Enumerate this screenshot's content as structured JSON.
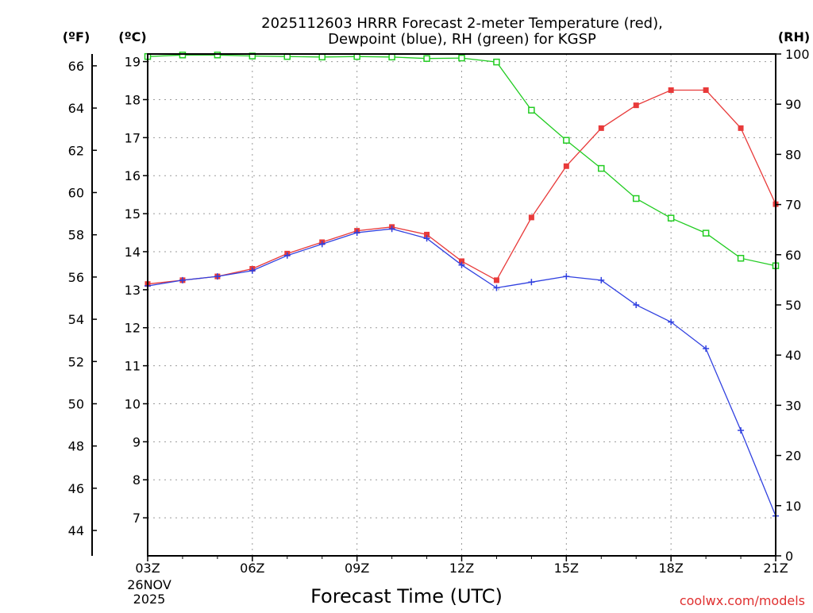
{
  "chart_data": {
    "type": "line",
    "title_line1": "2025112603 HRRR Forecast 2-meter Temperature (red),",
    "title_line2": "Dewpoint (blue), RH (green) for KGSP",
    "xlabel": "Forecast Time (UTC)",
    "credit": "coolwx.com/models",
    "unit_f": "(ºF)",
    "unit_c": "(ºC)",
    "unit_rh": "(RH)",
    "x_ticks": [
      "03Z",
      "06Z",
      "09Z",
      "12Z",
      "15Z",
      "18Z",
      "21Z"
    ],
    "x_tick_hours": [
      3,
      6,
      9,
      12,
      15,
      18,
      21
    ],
    "date_line1": "26NOV",
    "date_line2": "2025",
    "xlim": [
      3,
      21
    ],
    "ylim_c": [
      6,
      19.2
    ],
    "ylim_rh": [
      0,
      100
    ],
    "yticks_c": [
      7,
      8,
      9,
      10,
      11,
      12,
      13,
      14,
      15,
      16,
      17,
      18,
      19
    ],
    "yticks_f": [
      44,
      46,
      48,
      50,
      52,
      54,
      56,
      58,
      60,
      62,
      64,
      66
    ],
    "yticks_rh": [
      0,
      10,
      20,
      30,
      40,
      50,
      60,
      70,
      80,
      90,
      100
    ],
    "hours": [
      3,
      4,
      5,
      6,
      7,
      8,
      9,
      10,
      11,
      12,
      13,
      14,
      15,
      16,
      17,
      18,
      19,
      20,
      21
    ],
    "series": [
      {
        "name": "Temperature",
        "axis": "c",
        "color": "#e83a3a",
        "marker": "filled-square",
        "values": [
          13.15,
          13.25,
          13.35,
          13.55,
          13.95,
          14.25,
          14.55,
          14.65,
          14.45,
          13.75,
          13.25,
          14.9,
          16.25,
          17.25,
          17.85,
          18.25,
          18.25,
          17.25,
          15.25
        ]
      },
      {
        "name": "Dewpoint",
        "axis": "c",
        "color": "#3040e0",
        "marker": "plus",
        "values": [
          13.1,
          13.25,
          13.35,
          13.5,
          13.9,
          14.2,
          14.5,
          14.6,
          14.35,
          13.65,
          13.05,
          13.2,
          13.35,
          13.25,
          12.6,
          12.15,
          11.45,
          9.3,
          7.05
        ]
      },
      {
        "name": "RH",
        "axis": "rh",
        "color": "#22cc22",
        "marker": "open-square",
        "values": [
          99.5,
          99.8,
          99.8,
          99.6,
          99.5,
          99.4,
          99.5,
          99.4,
          99.1,
          99.2,
          98.4,
          88.8,
          82.8,
          77.2,
          71.2,
          67.3,
          64.3,
          59.3,
          57.8
        ]
      }
    ]
  }
}
